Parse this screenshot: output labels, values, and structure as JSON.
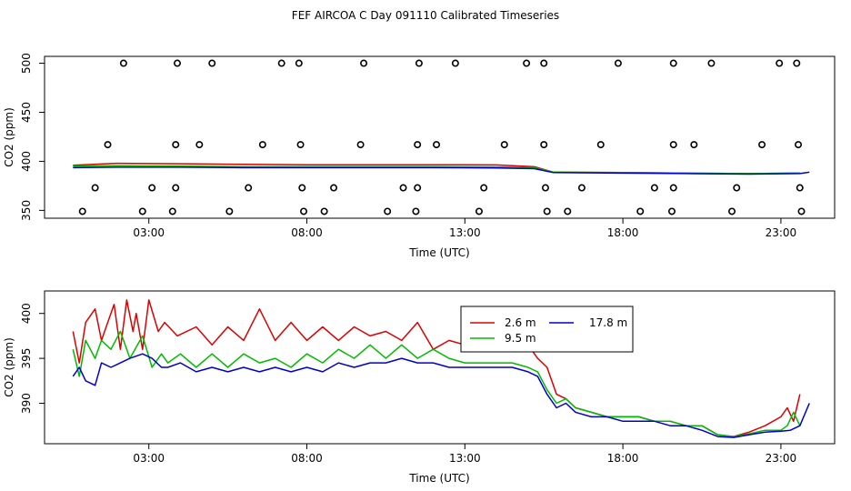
{
  "title": "FEF AIRCOA C  Day 091110  Calibrated Timeseries",
  "colors": {
    "s26": "#dd0000",
    "s95": "#00bb00",
    "s178": "#0000cc",
    "axis": "#000000"
  },
  "chart_data": [
    {
      "type": "scatter+line",
      "xlabel": "Time (UTC)",
      "ylabel": "CO2 (ppm)",
      "xlim": [
        -0.3,
        24.7
      ],
      "ylim": [
        342,
        507
      ],
      "xticks": [
        3,
        8,
        13,
        18,
        23
      ],
      "xtick_labels": [
        "03:00",
        "08:00",
        "13:00",
        "18:00",
        "23:00"
      ],
      "yticks": [
        350,
        400,
        450,
        500
      ],
      "ytick_labels": [
        "350",
        "400",
        "450",
        "500"
      ],
      "markers": {
        "500": [
          2.2,
          3.9,
          5.0,
          7.2,
          7.75,
          9.8,
          11.55,
          12.7,
          14.95,
          15.5,
          17.85,
          19.6,
          20.8,
          22.95,
          23.5
        ],
        "417": [
          1.7,
          3.85,
          4.6,
          6.6,
          7.8,
          9.7,
          11.5,
          12.1,
          14.25,
          15.5,
          17.3,
          19.6,
          20.25,
          22.4,
          23.55
        ],
        "373": [
          1.3,
          3.1,
          3.85,
          6.15,
          7.85,
          8.85,
          11.05,
          11.5,
          13.6,
          15.55,
          16.7,
          19.0,
          19.6,
          21.6,
          23.6
        ],
        "349": [
          0.9,
          2.8,
          3.75,
          5.55,
          7.9,
          8.55,
          10.55,
          11.45,
          13.45,
          15.6,
          16.25,
          18.55,
          19.55,
          21.45,
          23.65
        ]
      },
      "series": [
        {
          "name": "2.6 m",
          "x": [
            0.6,
            2,
            4,
            6,
            8,
            10,
            12,
            14,
            15.2,
            15.8,
            18,
            20,
            22,
            23.6
          ],
          "values": [
            396,
            398,
            397.5,
            397,
            396.5,
            396.5,
            396.5,
            396.3,
            394.5,
            389,
            388.5,
            388,
            387.5,
            388
          ]
        },
        {
          "name": "9.5 m",
          "x": [
            0.6,
            2,
            4,
            6,
            8,
            10,
            12,
            14,
            15.2,
            15.8,
            18,
            20,
            22,
            23.6
          ],
          "values": [
            395,
            395.5,
            395,
            394.5,
            394.5,
            394.5,
            394.5,
            394.3,
            393.5,
            389,
            388.5,
            388,
            387.5,
            388
          ]
        },
        {
          "name": "17.8 m",
          "x": [
            0.6,
            2,
            4,
            6,
            8,
            10,
            12,
            14,
            15.2,
            15.8,
            18,
            20,
            22,
            23.6,
            23.9
          ],
          "values": [
            393.5,
            394,
            394,
            393.5,
            393.5,
            393.5,
            393.5,
            393.3,
            392.5,
            388.5,
            388,
            387.5,
            387,
            387.5,
            389
          ]
        }
      ]
    },
    {
      "type": "line",
      "xlabel": "Time (UTC)",
      "ylabel": "CO2 (ppm)",
      "xlim": [
        -0.3,
        24.7
      ],
      "ylim": [
        385.5,
        402.5
      ],
      "xticks": [
        3,
        8,
        13,
        18,
        23
      ],
      "xtick_labels": [
        "03:00",
        "08:00",
        "13:00",
        "18:00",
        "23:00"
      ],
      "yticks": [
        390,
        395,
        400
      ],
      "ytick_labels": [
        "390",
        "395",
        "400"
      ],
      "legend": {
        "position": "upper-center",
        "entries": [
          "2.6 m",
          "9.5 m",
          "17.8 m"
        ]
      },
      "series": [
        {
          "name": "2.6 m",
          "x": [
            0.6,
            0.8,
            1.0,
            1.3,
            1.5,
            1.7,
            1.9,
            2.1,
            2.3,
            2.5,
            2.6,
            2.8,
            3.0,
            3.3,
            3.5,
            3.9,
            4.5,
            5.0,
            5.5,
            6.0,
            6.5,
            7.0,
            7.5,
            8.0,
            8.5,
            9.0,
            9.5,
            10.0,
            10.5,
            11.0,
            11.5,
            12.0,
            12.5,
            13.0,
            13.5,
            14.0,
            14.5,
            15.0,
            15.3,
            15.6,
            15.9,
            16.2,
            16.5,
            17.0,
            17.5,
            18.0,
            18.5,
            19.0,
            19.5,
            20.0,
            20.5,
            21.0,
            21.5,
            22.0,
            22.5,
            23.0,
            23.2,
            23.4,
            23.6
          ],
          "values": [
            398,
            394.5,
            399,
            400.5,
            397,
            399,
            401,
            396,
            401.5,
            398,
            400,
            396,
            401.5,
            398,
            399,
            397.5,
            398.5,
            396.5,
            398.5,
            397,
            400.5,
            397,
            399,
            397,
            398.5,
            397,
            398.5,
            397.5,
            398,
            397,
            399,
            396,
            397,
            396.5,
            396,
            397.5,
            396,
            396.5,
            395,
            394,
            391,
            390.5,
            389.5,
            389,
            388.5,
            388.5,
            388.5,
            388,
            388,
            387.5,
            387.5,
            386.5,
            386.3,
            386.8,
            387.5,
            388.5,
            389.5,
            388,
            391
          ]
        },
        {
          "name": "9.5 m",
          "x": [
            0.6,
            0.8,
            1.0,
            1.3,
            1.5,
            1.8,
            2.1,
            2.4,
            2.8,
            3.1,
            3.4,
            3.6,
            4.0,
            4.5,
            5.0,
            5.5,
            6.0,
            6.5,
            7.0,
            7.5,
            8.0,
            8.5,
            9.0,
            9.5,
            10.0,
            10.5,
            11.0,
            11.5,
            12.0,
            12.5,
            13.0,
            13.5,
            14.0,
            14.5,
            15.0,
            15.3,
            15.6,
            15.9,
            16.2,
            16.5,
            17.0,
            17.5,
            18.0,
            18.5,
            19.0,
            19.5,
            20.0,
            20.5,
            21.0,
            21.5,
            22.0,
            22.5,
            23.0,
            23.2,
            23.4,
            23.6
          ],
          "values": [
            396,
            393,
            397,
            395,
            397,
            396,
            398,
            395,
            397.5,
            394,
            395.5,
            394.5,
            395.5,
            394,
            395.5,
            394,
            395.5,
            394.5,
            395,
            394,
            395.5,
            394.5,
            396,
            395,
            396.5,
            395,
            396.5,
            395,
            396,
            395,
            394.5,
            394.5,
            394.5,
            394.5,
            394,
            393.5,
            391.5,
            390,
            390.5,
            389.5,
            389,
            388.5,
            388.5,
            388.5,
            388,
            388,
            387.5,
            387.5,
            386.5,
            386.3,
            386.6,
            387,
            387,
            387.5,
            389,
            387.5
          ]
        },
        {
          "name": "17.8 m",
          "x": [
            0.6,
            0.8,
            1.0,
            1.3,
            1.5,
            1.8,
            2.1,
            2.4,
            2.8,
            3.1,
            3.4,
            3.6,
            4.0,
            4.5,
            5.0,
            5.5,
            6.0,
            6.5,
            7.0,
            7.5,
            8.0,
            8.5,
            9.0,
            9.5,
            10.0,
            10.5,
            11.0,
            11.5,
            12.0,
            12.5,
            13.0,
            13.5,
            14.0,
            14.5,
            15.0,
            15.3,
            15.6,
            15.9,
            16.2,
            16.5,
            17.0,
            17.5,
            18.0,
            18.5,
            19.0,
            19.5,
            20.0,
            20.5,
            21.0,
            21.5,
            22.0,
            22.5,
            23.0,
            23.3,
            23.6,
            23.9
          ],
          "values": [
            393,
            394,
            392.5,
            392,
            394.5,
            394,
            394.5,
            395,
            395.5,
            395,
            394,
            394,
            394.5,
            393.5,
            394,
            393.5,
            394,
            393.5,
            394,
            393.5,
            394,
            393.5,
            394.5,
            394,
            394.5,
            394.5,
            395,
            394.5,
            394.5,
            394,
            394,
            394,
            394,
            394,
            393.5,
            393,
            391,
            389.5,
            390,
            389,
            388.5,
            388.5,
            388,
            388,
            388,
            387.5,
            387.5,
            387,
            386.3,
            386.2,
            386.5,
            386.8,
            386.9,
            387,
            387.5,
            390
          ]
        }
      ]
    }
  ]
}
